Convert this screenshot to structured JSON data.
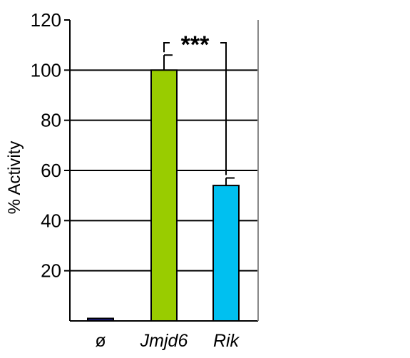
{
  "chart_data": {
    "type": "bar",
    "categories": [
      "ø",
      "Jmjd6",
      "Rik"
    ],
    "values": [
      1,
      100,
      54
    ],
    "errors": [
      0,
      6,
      3
    ],
    "colors": [
      "#1a1a80",
      "#99cc00",
      "#00c0f0"
    ],
    "ylabel": "% Activity",
    "xlabel": "",
    "title": "",
    "ylim": [
      0,
      120
    ],
    "yticks": [
      20,
      40,
      60,
      80,
      100,
      120
    ],
    "grid": true,
    "significance": {
      "between": [
        "Jmjd6",
        "Rik"
      ],
      "label": "***"
    }
  }
}
